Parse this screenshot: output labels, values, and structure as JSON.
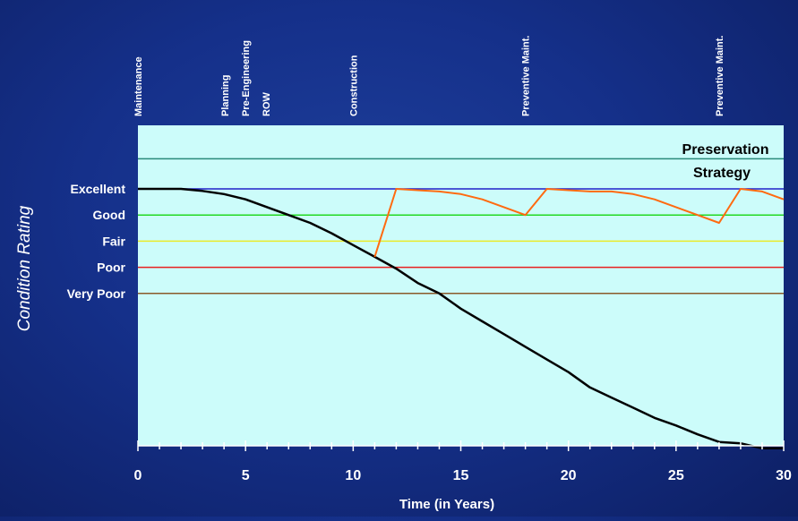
{
  "chart_data": {
    "type": "line",
    "xlabel": "Time (in Years)",
    "ylabel": "Condition Rating",
    "xlim": [
      0,
      30
    ],
    "x_ticks": [
      0,
      5,
      10,
      15,
      20,
      25,
      30
    ],
    "ylim": [
      0,
      10
    ],
    "condition_levels": [
      {
        "label": "Excellent",
        "value": 10,
        "color": "#2020c8"
      },
      {
        "label": "Good",
        "value": 9,
        "color": "#22d822"
      },
      {
        "label": "Fair",
        "value": 8,
        "color": "#eaea2a"
      },
      {
        "label": "Poor",
        "value": 7,
        "color": "#e82020"
      },
      {
        "label": "Very Poor",
        "value": 6,
        "color": "#8a5a2a"
      }
    ],
    "preservation_line": {
      "value": 11.15,
      "color": "#2a8a7a"
    },
    "annotation": {
      "line1": "Preservation",
      "line2": "Strategy"
    },
    "events": [
      {
        "x": 0,
        "labels": [
          "Maintenance"
        ]
      },
      {
        "x": 5,
        "labels": [
          "Planning",
          "Pre-Engineering",
          "ROW"
        ]
      },
      {
        "x": 10,
        "labels": [
          "Construction"
        ]
      },
      {
        "x": 18,
        "labels": [
          "Preventive Maint."
        ]
      },
      {
        "x": 27,
        "labels": [
          "Preventive Maint."
        ]
      }
    ],
    "series": [
      {
        "color": "#000000",
        "x": [
          0,
          2,
          3,
          4,
          5,
          6,
          7,
          8,
          9,
          10,
          11,
          12,
          13,
          14,
          15,
          16,
          17,
          18,
          19,
          20,
          21,
          22,
          23,
          24,
          25,
          26,
          27,
          28,
          29,
          30
        ],
        "y": [
          10,
          10,
          9.92,
          9.8,
          9.6,
          9.3,
          9.0,
          8.7,
          8.3,
          7.85,
          7.4,
          6.95,
          6.4,
          6.0,
          5.4,
          4.9,
          4.4,
          3.9,
          3.4,
          2.9,
          2.3,
          1.9,
          1.5,
          1.1,
          0.8,
          0.45,
          0.15,
          0.1,
          -0.1,
          -0.1
        ]
      },
      {
        "color": "#ff6a10",
        "x": [
          11,
          12,
          13,
          14,
          15,
          16,
          17,
          18,
          19,
          20,
          21,
          22,
          23,
          24,
          25,
          26,
          27,
          28,
          29,
          30
        ],
        "y": [
          7.4,
          10,
          9.95,
          9.9,
          9.8,
          9.6,
          9.3,
          9.0,
          10,
          9.95,
          9.9,
          9.9,
          9.8,
          9.6,
          9.3,
          9.0,
          8.7,
          10,
          9.9,
          9.6
        ]
      }
    ]
  }
}
